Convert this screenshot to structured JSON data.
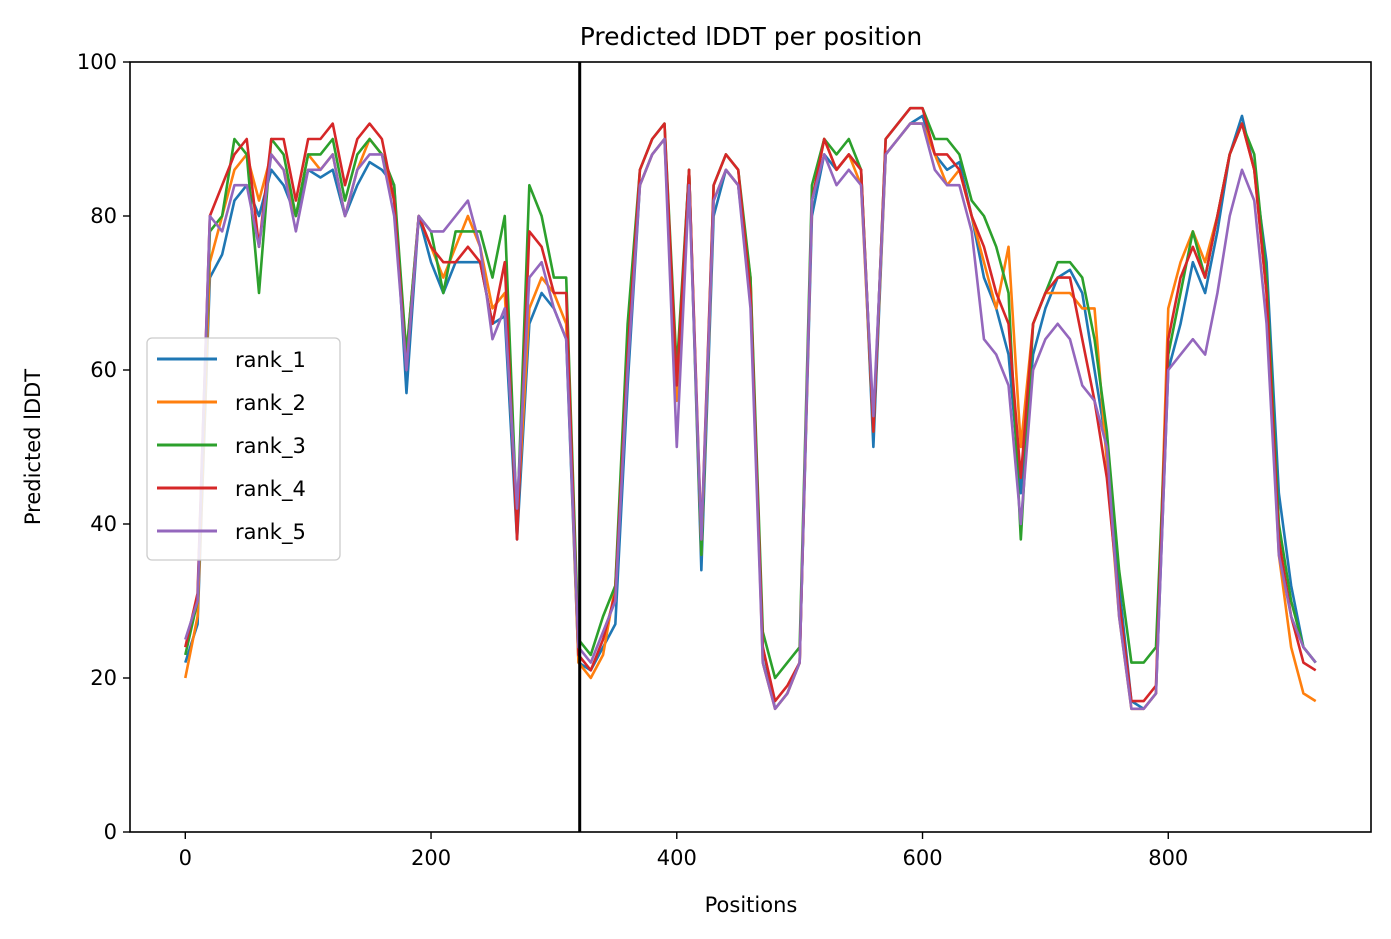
{
  "chart_data": {
    "type": "line",
    "title": "Predicted lDDT per position",
    "xlabel": "Positions",
    "ylabel": "Predicted lDDT",
    "xlim": [
      -45,
      965
    ],
    "ylim": [
      0,
      100
    ],
    "xticks": [
      0,
      200,
      400,
      600,
      800
    ],
    "yticks": [
      0,
      20,
      40,
      60,
      80,
      100
    ],
    "grid": false,
    "legend_position": "center-left",
    "chain_break": 321,
    "x": [
      0,
      10,
      20,
      30,
      40,
      50,
      60,
      70,
      80,
      90,
      100,
      110,
      120,
      130,
      140,
      150,
      160,
      170,
      180,
      190,
      200,
      210,
      220,
      230,
      240,
      250,
      260,
      270,
      280,
      290,
      300,
      310,
      320,
      330,
      340,
      350,
      360,
      370,
      380,
      390,
      400,
      410,
      420,
      430,
      440,
      450,
      460,
      470,
      480,
      490,
      500,
      510,
      520,
      530,
      540,
      550,
      560,
      570,
      580,
      590,
      600,
      610,
      620,
      630,
      640,
      650,
      660,
      670,
      680,
      690,
      700,
      710,
      720,
      730,
      740,
      750,
      760,
      770,
      780,
      790,
      800,
      810,
      820,
      830,
      840,
      850,
      860,
      870,
      880,
      890,
      900,
      910,
      920
    ],
    "series": [
      {
        "name": "rank_1",
        "color": "#1f77b4",
        "values": [
          22,
          27,
          72,
          75,
          82,
          84,
          80,
          86,
          84,
          80,
          86,
          85,
          86,
          80,
          84,
          87,
          86,
          84,
          57,
          80,
          74,
          70,
          74,
          74,
          74,
          66,
          67,
          38,
          66,
          70,
          68,
          64,
          22,
          21,
          24,
          27,
          58,
          84,
          88,
          90,
          58,
          86,
          34,
          80,
          86,
          84,
          70,
          24,
          16,
          18,
          22,
          80,
          88,
          86,
          88,
          86,
          50,
          88,
          90,
          92,
          93,
          88,
          86,
          87,
          80,
          72,
          68,
          62,
          44,
          62,
          68,
          72,
          73,
          70,
          60,
          50,
          32,
          17,
          16,
          18,
          60,
          66,
          74,
          70,
          78,
          88,
          93,
          86,
          74,
          44,
          32,
          24,
          22
        ]
      },
      {
        "name": "rank_2",
        "color": "#ff7f0e",
        "values": [
          20,
          28,
          74,
          80,
          86,
          88,
          82,
          88,
          86,
          80,
          88,
          86,
          88,
          80,
          86,
          90,
          88,
          82,
          62,
          80,
          76,
          72,
          76,
          80,
          76,
          68,
          70,
          40,
          68,
          72,
          70,
          66,
          22,
          20,
          23,
          32,
          62,
          84,
          88,
          90,
          56,
          86,
          36,
          82,
          86,
          84,
          72,
          22,
          16,
          18,
          22,
          82,
          90,
          86,
          88,
          84,
          52,
          88,
          90,
          92,
          92,
          88,
          84,
          86,
          80,
          74,
          68,
          76,
          50,
          66,
          70,
          70,
          70,
          68,
          68,
          48,
          28,
          16,
          16,
          18,
          68,
          74,
          78,
          74,
          80,
          88,
          92,
          86,
          70,
          36,
          24,
          18,
          17
        ]
      },
      {
        "name": "rank_3",
        "color": "#2ca02c",
        "values": [
          23,
          30,
          78,
          80,
          90,
          88,
          70,
          90,
          88,
          80,
          88,
          88,
          90,
          82,
          88,
          90,
          88,
          84,
          62,
          80,
          78,
          70,
          78,
          78,
          78,
          72,
          80,
          40,
          84,
          80,
          72,
          72,
          25,
          23,
          28,
          32,
          66,
          86,
          90,
          92,
          60,
          86,
          36,
          84,
          88,
          86,
          72,
          26,
          20,
          22,
          24,
          84,
          90,
          88,
          90,
          86,
          52,
          90,
          92,
          94,
          94,
          90,
          90,
          88,
          82,
          80,
          76,
          70,
          38,
          66,
          70,
          74,
          74,
          72,
          64,
          52,
          34,
          22,
          22,
          24,
          62,
          70,
          78,
          72,
          80,
          88,
          92,
          88,
          72,
          40,
          30,
          24,
          22
        ]
      },
      {
        "name": "rank_4",
        "color": "#d62728",
        "values": [
          24,
          31,
          80,
          84,
          88,
          90,
          76,
          90,
          90,
          82,
          90,
          90,
          92,
          84,
          90,
          92,
          90,
          82,
          60,
          80,
          76,
          74,
          74,
          76,
          74,
          66,
          74,
          38,
          78,
          76,
          70,
          70,
          23,
          21,
          25,
          31,
          62,
          86,
          90,
          92,
          58,
          86,
          38,
          84,
          88,
          86,
          70,
          24,
          17,
          19,
          22,
          82,
          90,
          86,
          88,
          86,
          52,
          90,
          92,
          94,
          94,
          88,
          88,
          86,
          80,
          76,
          70,
          66,
          46,
          66,
          70,
          72,
          72,
          64,
          56,
          46,
          30,
          17,
          17,
          19,
          64,
          72,
          76,
          72,
          80,
          88,
          92,
          86,
          70,
          38,
          28,
          22,
          21
        ]
      },
      {
        "name": "rank_5",
        "color": "#9467bd",
        "values": [
          25,
          30,
          80,
          78,
          84,
          84,
          76,
          88,
          86,
          78,
          86,
          86,
          88,
          80,
          86,
          88,
          88,
          80,
          60,
          80,
          78,
          78,
          80,
          82,
          76,
          64,
          68,
          42,
          72,
          74,
          68,
          64,
          24,
          22,
          26,
          30,
          60,
          84,
          88,
          90,
          50,
          84,
          38,
          82,
          86,
          84,
          68,
          22,
          16,
          18,
          22,
          82,
          88,
          84,
          86,
          84,
          54,
          88,
          90,
          92,
          92,
          86,
          84,
          84,
          78,
          64,
          62,
          58,
          40,
          60,
          64,
          66,
          64,
          58,
          56,
          50,
          28,
          16,
          16,
          18,
          60,
          62,
          64,
          62,
          70,
          80,
          86,
          82,
          66,
          36,
          28,
          24,
          22
        ]
      }
    ]
  }
}
